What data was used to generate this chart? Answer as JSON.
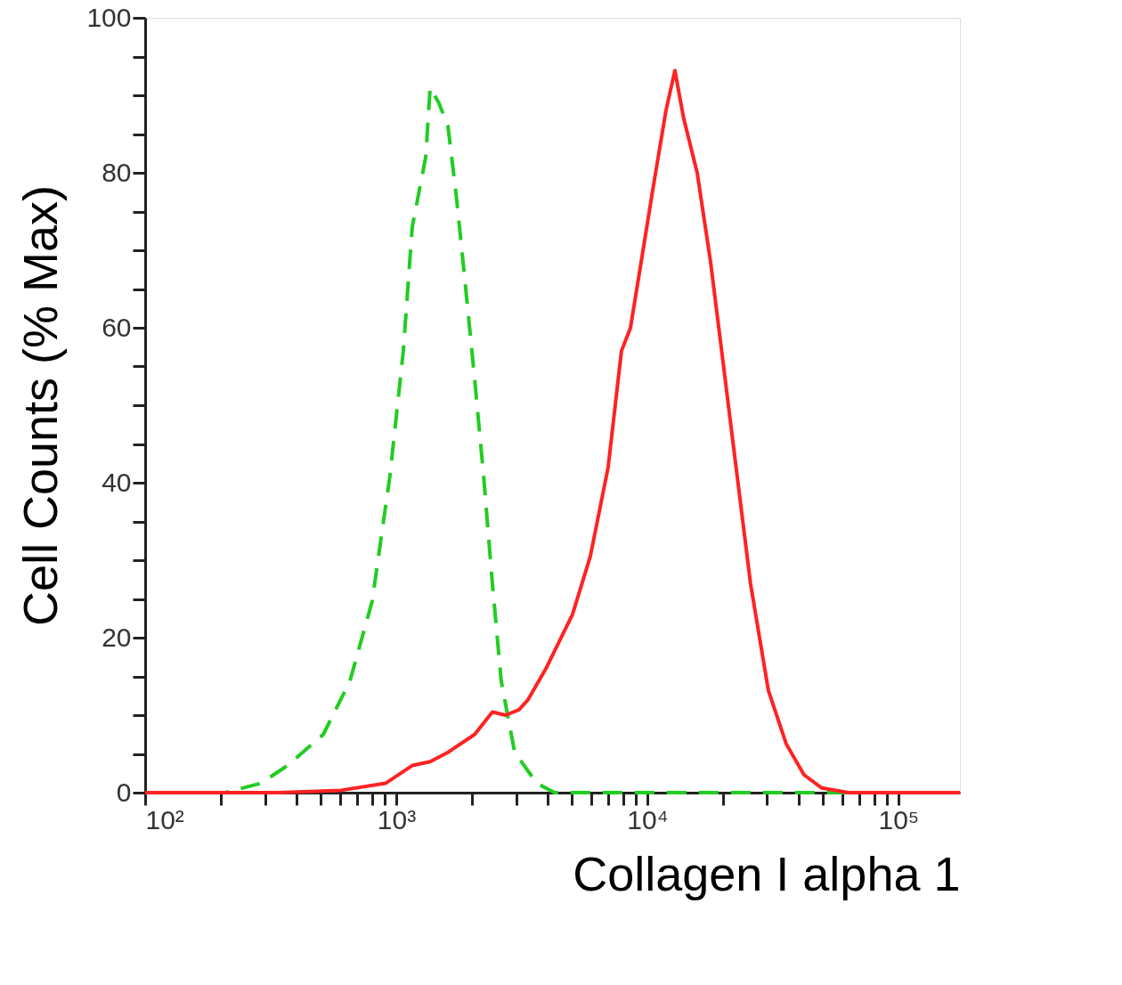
{
  "chart_data": {
    "type": "line",
    "xlabel": "Collagen I alpha 1",
    "ylabel": "Cell Counts (% Max)",
    "log": "x",
    "grid": false,
    "marker": "none",
    "xlim": [
      100,
      175800
    ],
    "ylim": [
      0,
      100
    ],
    "xticks": [
      {
        "value": 100,
        "label": "10²"
      },
      {
        "value": 200,
        "label": null
      },
      {
        "value": 300,
        "label": null
      },
      {
        "value": 400,
        "label": null
      },
      {
        "value": 500,
        "label": null
      },
      {
        "value": 600,
        "label": null
      },
      {
        "value": 700,
        "label": null
      },
      {
        "value": 800,
        "label": null
      },
      {
        "value": 900,
        "label": null
      },
      {
        "value": 1000,
        "label": "10³"
      },
      {
        "value": 2000,
        "label": null
      },
      {
        "value": 3000,
        "label": null
      },
      {
        "value": 4000,
        "label": null
      },
      {
        "value": 5000,
        "label": null
      },
      {
        "value": 6000,
        "label": null
      },
      {
        "value": 7000,
        "label": null
      },
      {
        "value": 8000,
        "label": null
      },
      {
        "value": 9000,
        "label": null
      },
      {
        "value": 10000,
        "label": "10⁴"
      },
      {
        "value": 20000,
        "label": null
      },
      {
        "value": 30000,
        "label": null
      },
      {
        "value": 40000,
        "label": null
      },
      {
        "value": 50000,
        "label": null
      },
      {
        "value": 60000,
        "label": null
      },
      {
        "value": 70000,
        "label": null
      },
      {
        "value": 80000,
        "label": null
      },
      {
        "value": 90000,
        "label": null
      },
      {
        "value": 100000,
        "label": "10⁵"
      }
    ],
    "yticks": [
      0,
      {
        "value": 5,
        "label": null
      },
      {
        "value": 10,
        "label": null
      },
      {
        "value": 15,
        "label": null
      },
      20,
      {
        "value": 25,
        "label": null
      },
      {
        "value": 30,
        "label": null
      },
      {
        "value": 35,
        "label": null
      },
      40,
      {
        "value": 45,
        "label": null
      },
      {
        "value": 50,
        "label": null
      },
      {
        "value": 55,
        "label": null
      },
      60,
      {
        "value": 65,
        "label": null
      },
      {
        "value": 70,
        "label": null
      },
      {
        "value": 75,
        "label": null
      },
      80,
      {
        "value": 85,
        "label": null
      },
      {
        "value": 90,
        "label": null
      },
      {
        "value": 95,
        "label": null
      },
      100
    ],
    "series": [
      {
        "color": "#22cc22",
        "line_style": "dashed",
        "x": [
          100,
          208,
          289,
          369,
          512,
          654,
          802,
          944,
          1067,
          1158,
          1310,
          1365,
          1479,
          1607,
          1742,
          1892,
          2051,
          2228,
          2415,
          2619,
          2963,
          3631,
          4276,
          175800
        ],
        "values": [
          0,
          0,
          1.2,
          3.5,
          7.5,
          14.4,
          24.7,
          40.9,
          57,
          73,
          82,
          91,
          89,
          86,
          76.5,
          65,
          53.5,
          40.9,
          27,
          14.4,
          5.2,
          1.2,
          0,
          0
        ]
      },
      {
        "color": "#ff2222",
        "line_style": "solid",
        "x": [
          100,
          340,
          603,
          906,
          1158,
          1365,
          1607,
          2051,
          2415,
          2729,
          3083,
          3350,
          3945,
          5036,
          5929,
          6982,
          7889,
          8570,
          9290,
          10500,
          11860,
          12880,
          13960,
          15800,
          17860,
          20180,
          21880,
          25760,
          30340,
          35730,
          42070,
          49550,
          63240,
          175800
        ],
        "values": [
          0,
          0,
          0.3,
          1.2,
          3.5,
          4,
          5.2,
          7.5,
          10.4,
          10,
          10.7,
          12,
          16,
          23,
          30.5,
          42,
          57,
          60,
          67,
          77.7,
          88,
          93.2,
          87,
          80,
          68.5,
          54.7,
          45.5,
          27,
          13.2,
          6.3,
          2.3,
          0.6,
          0,
          0
        ]
      }
    ]
  }
}
